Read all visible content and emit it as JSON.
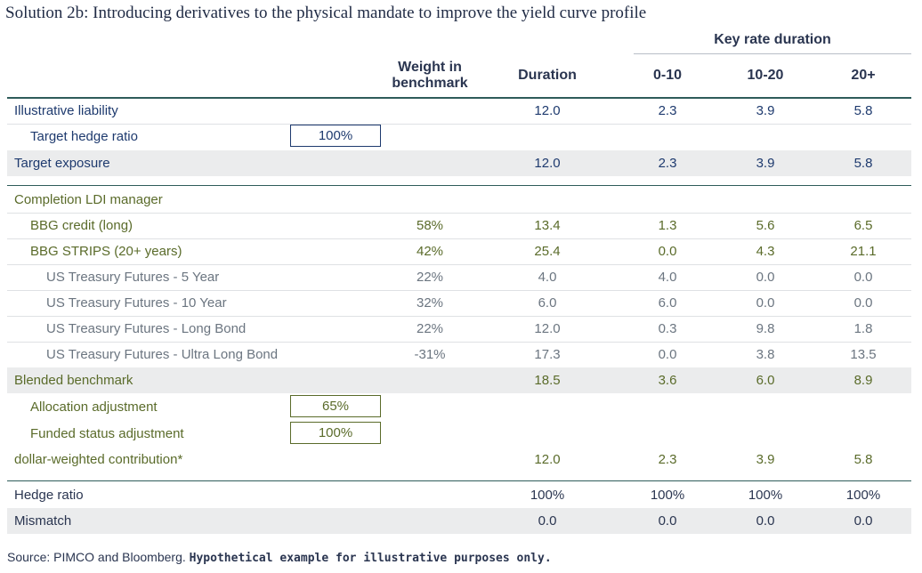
{
  "title": "Solution 2b: Introducing derivatives to the physical mandate to improve the yield curve profile",
  "key_rate_header": "Key rate duration",
  "columns": {
    "weight": "Weight in benchmark",
    "duration": "Duration",
    "k1": "0-10",
    "k2": "10-20",
    "k3": "20+"
  },
  "rows": {
    "illustrative_liability": {
      "label": "Illustrative liability",
      "duration": "12.0",
      "k1": "2.3",
      "k2": "3.9",
      "k3": "5.8"
    },
    "target_hedge_ratio": {
      "label": "Target hedge ratio",
      "box": "100%"
    },
    "target_exposure": {
      "label": "Target exposure",
      "duration": "12.0",
      "k1": "2.3",
      "k2": "3.9",
      "k3": "5.8"
    },
    "completion_manager": {
      "label": "Completion LDI manager"
    },
    "bbg_credit": {
      "label": "BBG credit (long)",
      "weight": "58%",
      "duration": "13.4",
      "k1": "1.3",
      "k2": "5.6",
      "k3": "6.5"
    },
    "bbg_strips": {
      "label": "BBG STRIPS (20+ years)",
      "weight": "42%",
      "duration": "25.4",
      "k1": "0.0",
      "k2": "4.3",
      "k3": "21.1"
    },
    "fut_5y": {
      "label": "US Treasury Futures - 5 Year",
      "weight": "22%",
      "duration": "4.0",
      "k1": "4.0",
      "k2": "0.0",
      "k3": "0.0"
    },
    "fut_10y": {
      "label": "US Treasury Futures - 10 Year",
      "weight": "32%",
      "duration": "6.0",
      "k1": "6.0",
      "k2": "0.0",
      "k3": "0.0"
    },
    "fut_long": {
      "label": "US Treasury Futures - Long Bond",
      "weight": "22%",
      "duration": "12.0",
      "k1": "0.3",
      "k2": "9.8",
      "k3": "1.8"
    },
    "fut_ultra": {
      "label": "US Treasury Futures - Ultra Long Bond",
      "weight": "-31%",
      "duration": "17.3",
      "k1": "0.0",
      "k2": "3.8",
      "k3": "13.5"
    },
    "blended": {
      "label": "Blended benchmark",
      "duration": "18.5",
      "k1": "3.6",
      "k2": "6.0",
      "k3": "8.9"
    },
    "allocation_adj": {
      "label": "Allocation adjustment",
      "box": "65%"
    },
    "funded_adj": {
      "label": "Funded status adjustment",
      "box": "100%"
    },
    "dollar_weighted": {
      "label": "dollar-weighted contribution*",
      "duration": "12.0",
      "k1": "2.3",
      "k2": "3.9",
      "k3": "5.8"
    },
    "hedge_ratio": {
      "label": "Hedge ratio",
      "duration": "100%",
      "k1": "100%",
      "k2": "100%",
      "k3": "100%"
    },
    "mismatch": {
      "label": "Mismatch",
      "duration": "0.0",
      "k1": "0.0",
      "k2": "0.0",
      "k3": "0.0"
    }
  },
  "source": {
    "normal": "Source: PIMCO and Bloomberg.",
    "bold": "Hypothetical example for illustrative purposes only."
  },
  "colors": {
    "blue": "#1e3a6e",
    "green": "#5a6b2a",
    "gray": "#6b7580",
    "rule": "#2e5c5a"
  }
}
